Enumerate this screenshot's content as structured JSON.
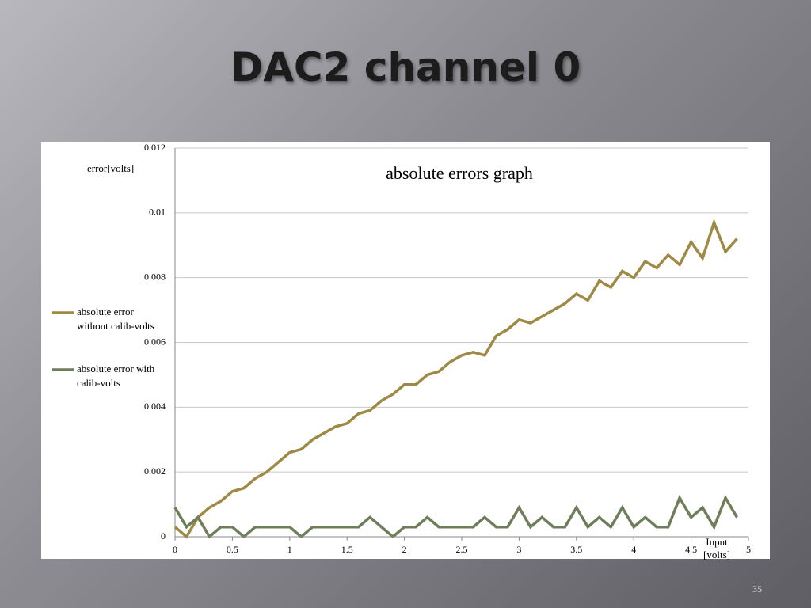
{
  "slide": {
    "title": "DAC2 channel 0",
    "page_number": "35"
  },
  "chart_data": {
    "type": "line",
    "title": "absolute errors graph",
    "y_label": "error[volts]",
    "x_label": "Input [volts]",
    "x": [
      0,
      0.1,
      0.2,
      0.3,
      0.4,
      0.5,
      0.6,
      0.7,
      0.8,
      0.9,
      1.0,
      1.1,
      1.2,
      1.3,
      1.4,
      1.5,
      1.6,
      1.7,
      1.8,
      1.9,
      2.0,
      2.1,
      2.2,
      2.3,
      2.4,
      2.5,
      2.6,
      2.7,
      2.8,
      2.9,
      3.0,
      3.1,
      3.2,
      3.3,
      3.4,
      3.5,
      3.6,
      3.7,
      3.8,
      3.9,
      4.0,
      4.1,
      4.2,
      4.3,
      4.4,
      4.5,
      4.6,
      4.7,
      4.8,
      4.9
    ],
    "series": [
      {
        "name": "absolute error without calib-volts",
        "color": "#9e8a45",
        "values": [
          0.0003,
          0.0,
          0.0006,
          0.0009,
          0.0011,
          0.0014,
          0.0015,
          0.0018,
          0.002,
          0.0023,
          0.0026,
          0.0027,
          0.003,
          0.0032,
          0.0034,
          0.0035,
          0.0038,
          0.0039,
          0.0042,
          0.0044,
          0.0047,
          0.0047,
          0.005,
          0.0051,
          0.0054,
          0.0056,
          0.0057,
          0.0056,
          0.0062,
          0.0064,
          0.0067,
          0.0066,
          0.0068,
          0.007,
          0.0072,
          0.0075,
          0.0073,
          0.0079,
          0.0077,
          0.0082,
          0.008,
          0.0085,
          0.0083,
          0.0087,
          0.0084,
          0.0091,
          0.0086,
          0.0097,
          0.0088,
          0.0092
        ]
      },
      {
        "name": "absolute error with calib-volts",
        "color": "#6e7d5a",
        "values": [
          0.0009,
          0.0003,
          0.0006,
          0.0,
          0.0003,
          0.0003,
          0.0,
          0.0003,
          0.0003,
          0.0003,
          0.0003,
          0.0,
          0.0003,
          0.0003,
          0.0003,
          0.0003,
          0.0003,
          0.0006,
          0.0003,
          0.0,
          0.0003,
          0.0003,
          0.0006,
          0.0003,
          0.0003,
          0.0003,
          0.0003,
          0.0006,
          0.0003,
          0.0003,
          0.0009,
          0.0003,
          0.0006,
          0.0003,
          0.0003,
          0.0009,
          0.0003,
          0.0006,
          0.0003,
          0.0009,
          0.0003,
          0.0006,
          0.0003,
          0.0003,
          0.0012,
          0.0006,
          0.0009,
          0.0003,
          0.0012,
          0.0006
        ]
      }
    ],
    "xlim": [
      0,
      5
    ],
    "xticks": [
      0,
      0.5,
      1,
      1.5,
      2,
      2.5,
      3,
      3.5,
      4,
      4.5,
      5
    ],
    "ylim": [
      0,
      0.012
    ],
    "yticks": [
      0,
      0.002,
      0.004,
      0.006,
      0.008,
      0.01,
      0.012
    ],
    "grid": true,
    "legend": "left"
  }
}
